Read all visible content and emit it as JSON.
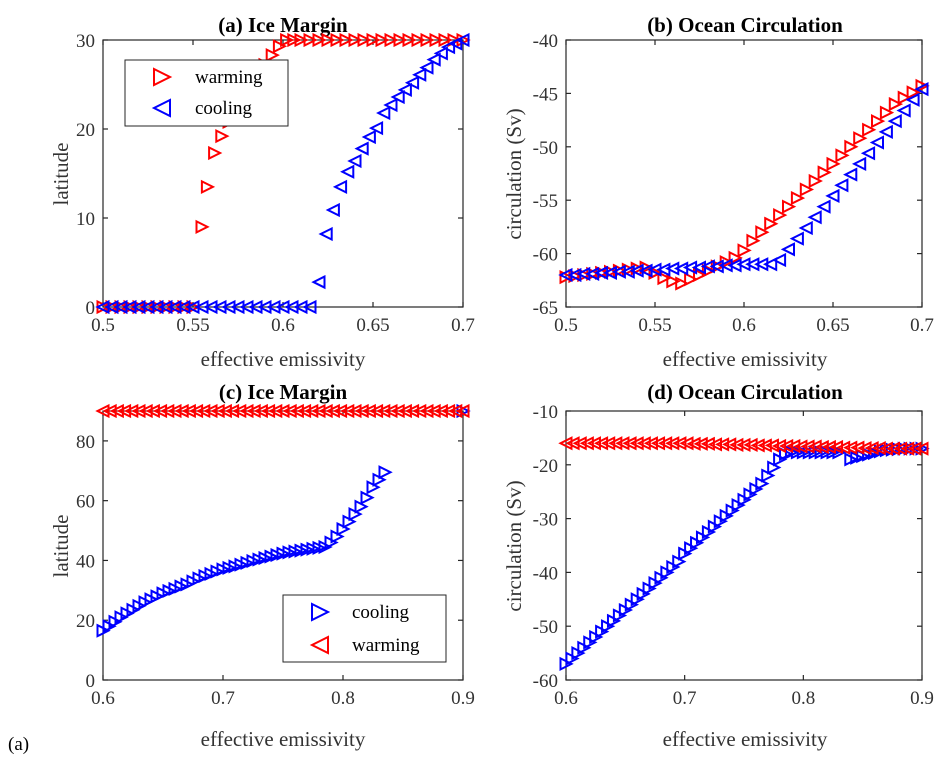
{
  "figure_label": "(a)",
  "chart_data": [
    {
      "id": "a",
      "type": "scatter",
      "title": "(a) Ice Margin",
      "xlabel": "effective emissivity",
      "ylabel": "latitude",
      "xlim": [
        0.5,
        0.7
      ],
      "ylim": [
        0,
        30
      ],
      "xticks": [
        0.5,
        0.55,
        0.6,
        0.65,
        0.7
      ],
      "yticks": [
        0,
        10,
        20,
        30
      ],
      "xtick_labels": [
        "0.5",
        "0.55",
        "0.6",
        "0.65",
        "0.7"
      ],
      "ytick_labels": [
        "0",
        "10",
        "20",
        "30"
      ],
      "legend_position": "top-left",
      "series": [
        {
          "name": "warming",
          "color": "#ff0000",
          "marker": "triangle-right",
          "x": [
            0.5,
            0.505,
            0.51,
            0.515,
            0.52,
            0.525,
            0.53,
            0.535,
            0.54,
            0.545,
            0.55,
            0.555,
            0.558,
            0.562,
            0.566,
            0.57,
            0.574,
            0.578,
            0.582,
            0.586,
            0.59,
            0.594,
            0.598,
            0.602,
            0.606,
            0.61,
            0.615,
            0.62,
            0.625,
            0.63,
            0.635,
            0.64,
            0.645,
            0.65,
            0.655,
            0.66,
            0.665,
            0.67,
            0.675,
            0.68,
            0.685,
            0.69,
            0.695,
            0.7
          ],
          "y": [
            0,
            0,
            0,
            0,
            0,
            0,
            0,
            0,
            0,
            0,
            0,
            9,
            13.5,
            17.3,
            19.2,
            20.8,
            22.2,
            23.5,
            24.8,
            26,
            27.2,
            28.3,
            29.3,
            30,
            30,
            30,
            30,
            30,
            30,
            30,
            30,
            30,
            30,
            30,
            30,
            30,
            30,
            30,
            30,
            30,
            30,
            30,
            30,
            30
          ]
        },
        {
          "name": "cooling",
          "color": "#0000ff",
          "marker": "triangle-left",
          "x": [
            0.5,
            0.505,
            0.51,
            0.515,
            0.52,
            0.525,
            0.53,
            0.535,
            0.54,
            0.545,
            0.55,
            0.555,
            0.56,
            0.565,
            0.57,
            0.575,
            0.58,
            0.585,
            0.59,
            0.595,
            0.6,
            0.605,
            0.61,
            0.615,
            0.62,
            0.624,
            0.628,
            0.632,
            0.636,
            0.64,
            0.644,
            0.648,
            0.652,
            0.656,
            0.66,
            0.664,
            0.668,
            0.672,
            0.676,
            0.68,
            0.684,
            0.688,
            0.692,
            0.696,
            0.7
          ],
          "y": [
            0,
            0,
            0,
            0,
            0,
            0,
            0,
            0,
            0,
            0,
            0,
            0,
            0,
            0,
            0,
            0,
            0,
            0,
            0,
            0,
            0,
            0,
            0,
            0,
            2.8,
            8.2,
            10.9,
            13.5,
            15.2,
            16.4,
            17.8,
            19.1,
            20.1,
            21.8,
            22.7,
            23.6,
            24.4,
            25.2,
            26.1,
            26.9,
            27.8,
            28.5,
            29.2,
            29.6,
            30
          ]
        }
      ]
    },
    {
      "id": "b",
      "type": "scatter",
      "title": "(b) Ocean Circulation",
      "xlabel": "effective emissivity",
      "ylabel": "circulation (Sv)",
      "xlim": [
        0.5,
        0.7
      ],
      "ylim": [
        -65,
        -40
      ],
      "xticks": [
        0.5,
        0.55,
        0.6,
        0.65,
        0.7
      ],
      "yticks": [
        -65,
        -60,
        -55,
        -50,
        -45,
        -40
      ],
      "xtick_labels": [
        "0.5",
        "0.55",
        "0.6",
        "0.65",
        "0.7"
      ],
      "ytick_labels": [
        "-65",
        "-60",
        "-55",
        "-50",
        "-45",
        "-40"
      ],
      "series": [
        {
          "name": "warming",
          "color": "#ff0000",
          "marker": "triangle-right",
          "x": [
            0.5,
            0.505,
            0.51,
            0.515,
            0.52,
            0.525,
            0.53,
            0.535,
            0.54,
            0.545,
            0.55,
            0.555,
            0.56,
            0.565,
            0.57,
            0.575,
            0.58,
            0.585,
            0.59,
            0.595,
            0.6,
            0.605,
            0.61,
            0.615,
            0.62,
            0.625,
            0.63,
            0.635,
            0.64,
            0.645,
            0.65,
            0.655,
            0.66,
            0.665,
            0.67,
            0.675,
            0.68,
            0.685,
            0.69,
            0.695,
            0.7
          ],
          "y": [
            -62.2,
            -62.1,
            -62,
            -61.9,
            -61.8,
            -61.7,
            -61.6,
            -61.5,
            -61.4,
            -61.3,
            -61.8,
            -62.3,
            -62.6,
            -62.8,
            -62.4,
            -62,
            -61.6,
            -61.2,
            -60.8,
            -60.4,
            -59.7,
            -58.8,
            -58,
            -57.2,
            -56.4,
            -55.6,
            -54.8,
            -54,
            -53.2,
            -52.4,
            -51.6,
            -50.8,
            -50,
            -49.2,
            -48.4,
            -47.6,
            -46.8,
            -46,
            -45.4,
            -44.9,
            -44.3
          ]
        },
        {
          "name": "cooling",
          "color": "#0000ff",
          "marker": "triangle-left",
          "x": [
            0.5,
            0.505,
            0.51,
            0.515,
            0.52,
            0.525,
            0.53,
            0.535,
            0.54,
            0.545,
            0.55,
            0.555,
            0.56,
            0.565,
            0.57,
            0.575,
            0.58,
            0.585,
            0.59,
            0.595,
            0.6,
            0.605,
            0.61,
            0.615,
            0.62,
            0.625,
            0.63,
            0.635,
            0.64,
            0.645,
            0.65,
            0.655,
            0.66,
            0.665,
            0.67,
            0.675,
            0.68,
            0.685,
            0.69,
            0.695,
            0.7
          ],
          "y": [
            -62,
            -62,
            -61.9,
            -61.9,
            -61.8,
            -61.8,
            -61.7,
            -61.7,
            -61.6,
            -61.6,
            -61.5,
            -61.5,
            -61.4,
            -61.4,
            -61.3,
            -61.3,
            -61.2,
            -61.2,
            -61.1,
            -61.1,
            -61,
            -61,
            -61,
            -61,
            -60.6,
            -59.6,
            -58.6,
            -57.6,
            -56.6,
            -55.6,
            -54.6,
            -53.6,
            -52.6,
            -51.6,
            -50.6,
            -49.6,
            -48.6,
            -47.6,
            -46.6,
            -45.6,
            -44.6
          ]
        }
      ]
    },
    {
      "id": "c",
      "type": "scatter",
      "title": "(c) Ice Margin",
      "xlabel": "effective emissivity",
      "ylabel": "latitude",
      "xlim": [
        0.6,
        0.9
      ],
      "ylim": [
        0,
        90
      ],
      "xticks": [
        0.6,
        0.7,
        0.8,
        0.9
      ],
      "yticks": [
        0,
        20,
        40,
        60,
        80
      ],
      "xtick_labels": [
        "0.6",
        "0.7",
        "0.8",
        "0.9"
      ],
      "ytick_labels": [
        "0",
        "20",
        "40",
        "60",
        "80"
      ],
      "legend_position": "bottom-right",
      "series": [
        {
          "name": "cooling",
          "color": "#0000ff",
          "marker": "triangle-right",
          "x": [
            0.6,
            0.605,
            0.61,
            0.615,
            0.62,
            0.625,
            0.63,
            0.635,
            0.64,
            0.645,
            0.65,
            0.655,
            0.66,
            0.665,
            0.67,
            0.675,
            0.68,
            0.685,
            0.69,
            0.695,
            0.7,
            0.705,
            0.71,
            0.715,
            0.72,
            0.725,
            0.73,
            0.735,
            0.74,
            0.745,
            0.75,
            0.755,
            0.76,
            0.765,
            0.77,
            0.775,
            0.78,
            0.785,
            0.79,
            0.795,
            0.8,
            0.805,
            0.81,
            0.815,
            0.82,
            0.825,
            0.83,
            0.835,
            0.9
          ],
          "y": [
            16.5,
            18,
            19.5,
            21,
            22.3,
            23.5,
            24.8,
            26,
            27,
            28,
            29,
            29.8,
            30.5,
            31.3,
            32,
            33,
            34,
            34.8,
            35.5,
            36.3,
            37,
            37.5,
            38,
            38.6,
            39.2,
            39.8,
            40.3,
            40.8,
            41.3,
            41.8,
            42.3,
            42.7,
            43,
            43.3,
            43.6,
            43.9,
            44.2,
            44.5,
            46,
            48,
            50.5,
            53,
            55.5,
            58,
            61,
            64.5,
            67,
            69.5,
            90
          ]
        },
        {
          "name": "warming",
          "color": "#ff0000",
          "marker": "triangle-left",
          "x": [
            0.6,
            0.606,
            0.612,
            0.618,
            0.624,
            0.63,
            0.636,
            0.642,
            0.648,
            0.654,
            0.66,
            0.666,
            0.672,
            0.678,
            0.684,
            0.69,
            0.696,
            0.702,
            0.708,
            0.714,
            0.72,
            0.726,
            0.732,
            0.738,
            0.744,
            0.75,
            0.756,
            0.762,
            0.768,
            0.774,
            0.78,
            0.786,
            0.792,
            0.798,
            0.804,
            0.81,
            0.816,
            0.822,
            0.828,
            0.834,
            0.84,
            0.846,
            0.852,
            0.858,
            0.864,
            0.87,
            0.876,
            0.882,
            0.888,
            0.894,
            0.9
          ],
          "y": [
            90,
            90,
            90,
            90,
            90,
            90,
            90,
            90,
            90,
            90,
            90,
            90,
            90,
            90,
            90,
            90,
            90,
            90,
            90,
            90,
            90,
            90,
            90,
            90,
            90,
            90,
            90,
            90,
            90,
            90,
            90,
            90,
            90,
            90,
            90,
            90,
            90,
            90,
            90,
            90,
            90,
            90,
            90,
            90,
            90,
            90,
            90,
            90,
            90,
            90,
            90
          ]
        }
      ]
    },
    {
      "id": "d",
      "type": "scatter",
      "title": "(d) Ocean Circulation",
      "xlabel": "effective emissivity",
      "ylabel": "circulation (Sv)",
      "xlim": [
        0.6,
        0.9
      ],
      "ylim": [
        -60,
        -10
      ],
      "xticks": [
        0.6,
        0.7,
        0.8,
        0.9
      ],
      "yticks": [
        -60,
        -50,
        -40,
        -30,
        -20,
        -10
      ],
      "xtick_labels": [
        "0.6",
        "0.7",
        "0.8",
        "0.9"
      ],
      "ytick_labels": [
        "-60",
        "-50",
        "-40",
        "-30",
        "-20",
        "-10"
      ],
      "series": [
        {
          "name": "cooling",
          "color": "#0000ff",
          "marker": "triangle-right",
          "x": [
            0.6,
            0.605,
            0.61,
            0.615,
            0.62,
            0.625,
            0.63,
            0.635,
            0.64,
            0.645,
            0.65,
            0.655,
            0.66,
            0.665,
            0.67,
            0.675,
            0.68,
            0.685,
            0.69,
            0.695,
            0.7,
            0.705,
            0.71,
            0.715,
            0.72,
            0.725,
            0.73,
            0.735,
            0.74,
            0.745,
            0.75,
            0.755,
            0.76,
            0.765,
            0.77,
            0.775,
            0.78,
            0.785,
            0.79,
            0.795,
            0.8,
            0.805,
            0.81,
            0.815,
            0.82,
            0.825,
            0.83,
            0.84,
            0.845,
            0.85,
            0.855,
            0.86,
            0.865,
            0.87,
            0.875,
            0.88,
            0.885,
            0.89,
            0.895,
            0.9
          ],
          "y": [
            -57,
            -56,
            -55,
            -54,
            -53,
            -52,
            -51,
            -50,
            -49,
            -48,
            -47,
            -46,
            -45,
            -44,
            -43,
            -42,
            -41,
            -40,
            -39,
            -38,
            -36.5,
            -35.5,
            -34.5,
            -33.5,
            -32.5,
            -31.5,
            -30.5,
            -29.5,
            -28.5,
            -27.5,
            -26.5,
            -25.5,
            -24.5,
            -23.5,
            -22,
            -20.5,
            -19,
            -18,
            -17.7,
            -17.7,
            -17.7,
            -17.7,
            -17.7,
            -17.7,
            -17.7,
            -17.7,
            -17.7,
            -19,
            -18.7,
            -18.4,
            -18.1,
            -17.8,
            -17.5,
            -17.3,
            -17.2,
            -17.1,
            -17,
            -17,
            -17,
            -17
          ]
        },
        {
          "name": "warming",
          "color": "#ff0000",
          "marker": "triangle-left",
          "x": [
            0.6,
            0.606,
            0.612,
            0.618,
            0.624,
            0.63,
            0.636,
            0.642,
            0.648,
            0.654,
            0.66,
            0.666,
            0.672,
            0.678,
            0.684,
            0.69,
            0.696,
            0.702,
            0.708,
            0.714,
            0.72,
            0.726,
            0.732,
            0.738,
            0.744,
            0.75,
            0.756,
            0.762,
            0.768,
            0.774,
            0.78,
            0.786,
            0.792,
            0.798,
            0.804,
            0.81,
            0.816,
            0.822,
            0.828,
            0.834,
            0.84,
            0.846,
            0.852,
            0.858,
            0.864,
            0.87,
            0.876,
            0.882,
            0.888,
            0.894,
            0.9
          ],
          "y": [
            -16,
            -16,
            -16,
            -16,
            -16,
            -16,
            -16,
            -16,
            -16,
            -16,
            -16,
            -16,
            -16,
            -16,
            -16,
            -16,
            -16,
            -16,
            -16.1,
            -16.1,
            -16.1,
            -16.2,
            -16.2,
            -16.2,
            -16.3,
            -16.3,
            -16.3,
            -16.4,
            -16.4,
            -16.4,
            -16.5,
            -16.5,
            -16.5,
            -16.6,
            -16.6,
            -16.6,
            -16.7,
            -16.7,
            -16.7,
            -16.8,
            -16.8,
            -16.8,
            -16.9,
            -16.9,
            -16.9,
            -17,
            -17,
            -17,
            -17,
            -17,
            -17
          ]
        }
      ]
    }
  ]
}
